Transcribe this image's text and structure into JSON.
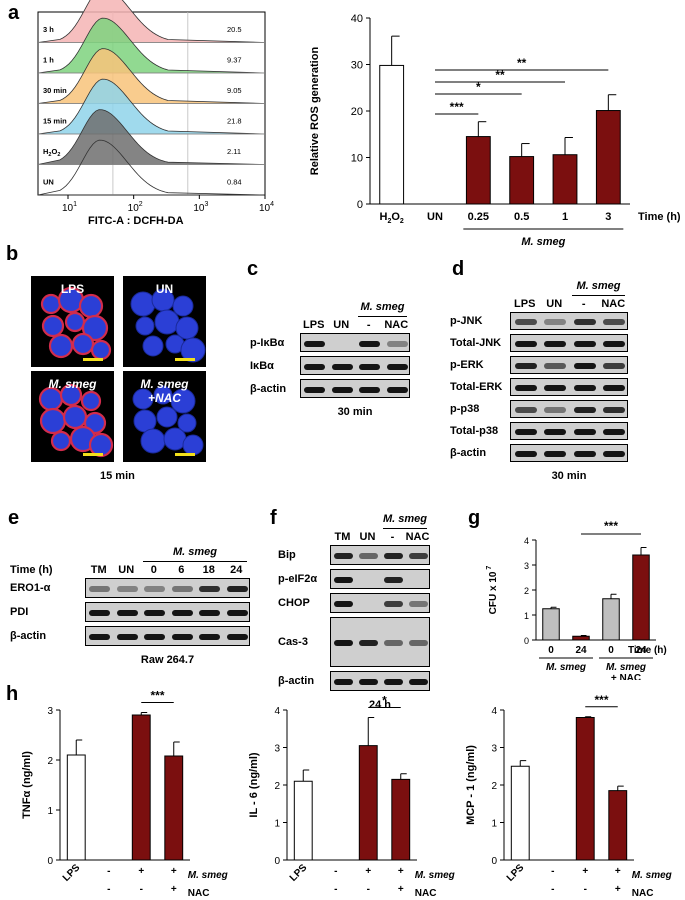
{
  "panels": {
    "a": {
      "letter": "a",
      "flow": {
        "xlabel": "FITC-A : DCFH-DA",
        "xticks": [
          "10",
          "10",
          "10",
          "10"
        ],
        "xtick_exp": [
          "1",
          "2",
          "3",
          "4"
        ],
        "rows": [
          {
            "label": "3 h",
            "value": "20.5",
            "color": "#f4b4b4"
          },
          {
            "label": "1 h",
            "value": "9.37",
            "color": "#7ed27e"
          },
          {
            "label": "30 min",
            "value": "9.05",
            "color": "#f8c37a"
          },
          {
            "label": "15 min",
            "value": "21.8",
            "color": "#8fd3ea"
          },
          {
            "label": "H",
            "label_sub": "2",
            "label_tail": "O",
            "label_sub2": "2",
            "value": "2.11",
            "color": "#6e6e6e"
          },
          {
            "label": "UN",
            "value": "0.84",
            "color": "#ffffff"
          }
        ]
      }
    },
    "b": {
      "letter": "b",
      "images": [
        "LPS",
        "UN",
        "M. smeg",
        "M. smeg +NAC"
      ],
      "caption": "15 min"
    },
    "c": {
      "letter": "c",
      "group": "M. smeg",
      "lanes": [
        "LPS",
        "UN",
        "-",
        "NAC"
      ],
      "rows": [
        "p-IκBα",
        "IκBα",
        "β-actin"
      ],
      "caption": "30 min"
    },
    "d": {
      "letter": "d",
      "group": "M. smeg",
      "lanes": [
        "LPS",
        "UN",
        "-",
        "NAC"
      ],
      "rows": [
        "p-JNK",
        "Total-JNK",
        "p-ERK",
        "Total-ERK",
        "p-p38",
        "Total-p38",
        "β-actin"
      ],
      "caption": "30 min"
    },
    "e": {
      "letter": "e",
      "group": "M. smeg",
      "row_header": "Time (h)",
      "lanes": [
        "TM",
        "UN",
        "0",
        "6",
        "18",
        "24"
      ],
      "rows": [
        "ERO1-α",
        "PDI",
        "β-actin"
      ],
      "caption": "Raw 264.7"
    },
    "f": {
      "letter": "f",
      "group": "M. smeg",
      "lanes": [
        "TM",
        "UN",
        "-",
        "NAC"
      ],
      "rows": [
        "Bip",
        "p-eIF2α",
        "CHOP",
        "Cas-3",
        "β-actin"
      ],
      "caption": "24 h"
    },
    "g": {
      "letter": "g"
    },
    "h": {
      "letter": "h"
    }
  },
  "chart_data": [
    {
      "id": "a-bar",
      "type": "bar",
      "ylabel": "Relative ROS generation",
      "ylim": [
        0,
        40
      ],
      "yticks": [
        0,
        10,
        20,
        30,
        40
      ],
      "categories": [
        "H2O2",
        "UN",
        "0.25",
        "0.5",
        "1",
        "3"
      ],
      "cat_labels": [
        "H",
        "UN",
        "0.25",
        "0.5",
        "1",
        "3"
      ],
      "values": [
        29.8,
        0,
        14.5,
        10.2,
        10.6,
        20.1
      ],
      "errors": [
        6.3,
        0,
        3.2,
        2.8,
        3.7,
        3.4
      ],
      "colors": [
        "#ffffff",
        "#ffffff",
        "#7b0f0f",
        "#7b0f0f",
        "#7b0f0f",
        "#7b0f0f"
      ],
      "group_label": "M. smeg",
      "time_label": "Time (h)",
      "significance": [
        {
          "label": "***"
        },
        {
          "label": "*"
        },
        {
          "label": "**"
        },
        {
          "label": "**"
        }
      ]
    },
    {
      "id": "g-bar",
      "type": "bar",
      "ylabel": "CFU x 10",
      "ylabel_sup": "7",
      "ylim": [
        0,
        4
      ],
      "yticks": [
        0,
        1,
        2,
        3,
        4
      ],
      "categories": [
        "0",
        "24",
        "0",
        "24"
      ],
      "values": [
        1.25,
        0.15,
        1.65,
        3.4
      ],
      "errors": [
        0.06,
        0.03,
        0.18,
        0.3
      ],
      "colors": [
        "#bfbfbf",
        "#7b0f0f",
        "#bfbfbf",
        "#7b0f0f"
      ],
      "groups": [
        {
          "label": "M. smeg"
        },
        {
          "label": "M. smeg",
          "extra": "+ NAC"
        }
      ],
      "time_label": "Time (h)",
      "significance": [
        {
          "label": "***"
        }
      ]
    },
    {
      "id": "h1",
      "type": "bar",
      "ylabel": "TNFα (ng/ml)",
      "ylim": [
        0,
        3
      ],
      "yticks": [
        0,
        1,
        2,
        3
      ],
      "categories": [
        "LPS",
        "-",
        "+",
        "+"
      ],
      "values": [
        2.1,
        0,
        2.9,
        2.08
      ],
      "errors": [
        0.3,
        0,
        0.05,
        0.28
      ],
      "colors": [
        "#ffffff",
        "#ffffff",
        "#7b0f0f",
        "#7b0f0f"
      ],
      "row1": [
        "-",
        "+",
        "+"
      ],
      "row2": [
        "-",
        "-",
        "+"
      ],
      "row1_label": "M. smeg",
      "row2_label": "NAC",
      "significance": [
        {
          "label": "***"
        }
      ]
    },
    {
      "id": "h2",
      "type": "bar",
      "ylabel": "IL - 6 (ng/ml)",
      "ylim": [
        0,
        4
      ],
      "yticks": [
        0,
        1,
        2,
        3,
        4
      ],
      "categories": [
        "LPS",
        "-",
        "+",
        "+"
      ],
      "values": [
        2.1,
        0,
        3.05,
        2.15
      ],
      "errors": [
        0.3,
        0,
        0.75,
        0.15
      ],
      "colors": [
        "#ffffff",
        "#ffffff",
        "#7b0f0f",
        "#7b0f0f"
      ],
      "row1": [
        "-",
        "+",
        "+"
      ],
      "row2": [
        "-",
        "-",
        "+"
      ],
      "row1_label": "M. smeg",
      "row2_label": "NAC",
      "significance": [
        {
          "label": "*"
        }
      ]
    },
    {
      "id": "h3",
      "type": "bar",
      "ylabel": "MCP - 1 (ng/ml)",
      "ylim": [
        0,
        4
      ],
      "yticks": [
        0,
        1,
        2,
        3,
        4
      ],
      "categories": [
        "LPS",
        "-",
        "+",
        "+"
      ],
      "values": [
        2.5,
        0,
        3.8,
        1.85
      ],
      "errors": [
        0.15,
        0,
        0.02,
        0.12
      ],
      "colors": [
        "#ffffff",
        "#ffffff",
        "#7b0f0f",
        "#7b0f0f"
      ],
      "row1": [
        "-",
        "+",
        "+"
      ],
      "row2": [
        "-",
        "-",
        "+"
      ],
      "row1_label": "M. smeg",
      "row2_label": "NAC",
      "significance": [
        {
          "label": "***"
        }
      ]
    }
  ]
}
